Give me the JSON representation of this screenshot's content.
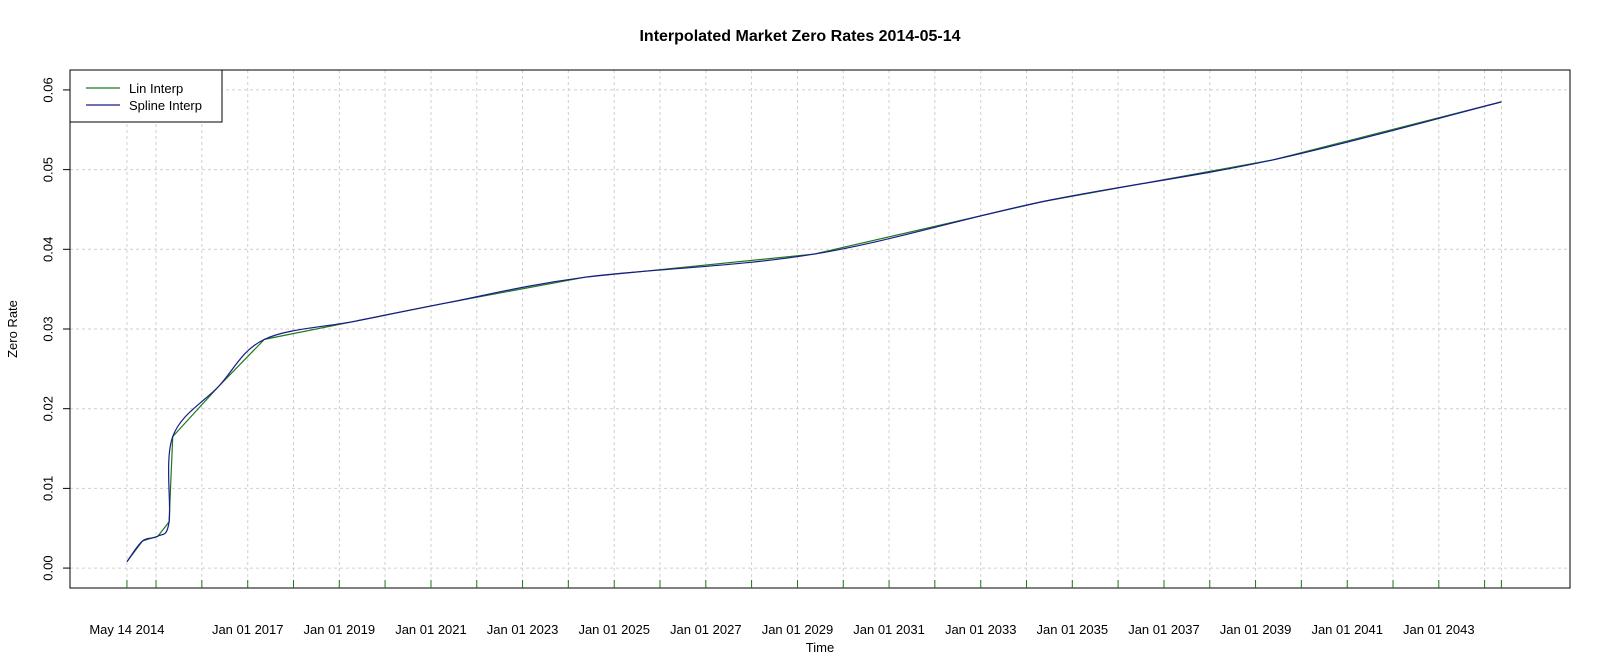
{
  "chart_data": {
    "type": "line",
    "title": "Interpolated Market Zero Rates 2014-05-14",
    "xlabel": "Time",
    "ylabel": "Zero Rate",
    "x_axis_type": "date",
    "xlim": [
      "2013-02-14",
      "2045-11-12"
    ],
    "ylim": [
      -0.0025,
      0.0625
    ],
    "y_ticks": [
      0.0,
      0.01,
      0.02,
      0.03,
      0.04,
      0.05,
      0.06
    ],
    "y_tick_labels": [
      "0.00",
      "0.01",
      "0.02",
      "0.03",
      "0.04",
      "0.05",
      "0.06"
    ],
    "x_tick_labels": [
      {
        "date": "2014-05-14",
        "label": "May 14 2014"
      },
      {
        "date": "2017-01-01",
        "label": "Jan 01 2017"
      },
      {
        "date": "2019-01-01",
        "label": "Jan 01 2019"
      },
      {
        "date": "2021-01-01",
        "label": "Jan 01 2021"
      },
      {
        "date": "2023-01-01",
        "label": "Jan 01 2023"
      },
      {
        "date": "2025-01-01",
        "label": "Jan 01 2025"
      },
      {
        "date": "2027-01-01",
        "label": "Jan 01 2027"
      },
      {
        "date": "2029-01-01",
        "label": "Jan 01 2029"
      },
      {
        "date": "2031-01-01",
        "label": "Jan 01 2031"
      },
      {
        "date": "2033-01-01",
        "label": "Jan 01 2033"
      },
      {
        "date": "2035-01-01",
        "label": "Jan 01 2035"
      },
      {
        "date": "2037-01-01",
        "label": "Jan 01 2037"
      },
      {
        "date": "2039-01-01",
        "label": "Jan 01 2039"
      },
      {
        "date": "2041-01-01",
        "label": "Jan 01 2041"
      },
      {
        "date": "2043-01-01",
        "label": "Jan 01 2043"
      }
    ],
    "x_grid_dates": [
      "2014-05-14",
      "2015-01-01",
      "2016-01-01",
      "2017-01-01",
      "2018-01-01",
      "2019-01-01",
      "2020-01-01",
      "2021-01-01",
      "2022-01-01",
      "2023-01-01",
      "2024-01-01",
      "2025-01-01",
      "2026-01-01",
      "2027-01-01",
      "2028-01-01",
      "2029-01-01",
      "2030-01-01",
      "2031-01-01",
      "2032-01-01",
      "2033-01-01",
      "2034-01-01",
      "2035-01-01",
      "2036-01-01",
      "2037-01-01",
      "2038-01-01",
      "2039-01-01",
      "2040-01-01",
      "2041-01-01",
      "2042-01-01",
      "2043-01-01",
      "2044-01-01",
      "2044-05-14"
    ],
    "grid": true,
    "legend_position": "top-left",
    "series": [
      {
        "name": "Lin Interp",
        "color": "#1a7a1a",
        "interpolation": "linear",
        "points": [
          [
            "2014-05-14",
            0.0008
          ],
          [
            "2014-09-15",
            0.0034
          ],
          [
            "2015-01-15",
            0.004
          ],
          [
            "2015-04-15",
            0.0058
          ],
          [
            "2015-05-14",
            0.0165
          ],
          [
            "2016-05-14",
            0.0228
          ],
          [
            "2017-05-14",
            0.0287
          ],
          [
            "2019-05-14",
            0.031
          ],
          [
            "2021-05-14",
            0.0333
          ],
          [
            "2024-05-14",
            0.0365
          ],
          [
            "2029-05-14",
            0.0394
          ],
          [
            "2034-05-14",
            0.046
          ],
          [
            "2039-05-14",
            0.0512
          ],
          [
            "2044-05-14",
            0.0585
          ]
        ]
      },
      {
        "name": "Spline Interp",
        "color": "#1a1a8c",
        "interpolation": "spline",
        "points": [
          [
            "2014-05-14",
            0.0008
          ],
          [
            "2014-09-15",
            0.0034
          ],
          [
            "2015-01-15",
            0.004
          ],
          [
            "2015-04-15",
            0.0058
          ],
          [
            "2015-05-14",
            0.0165
          ],
          [
            "2016-05-14",
            0.0228
          ],
          [
            "2017-05-14",
            0.0287
          ],
          [
            "2019-05-14",
            0.031
          ],
          [
            "2021-05-14",
            0.0333
          ],
          [
            "2024-05-14",
            0.0365
          ],
          [
            "2029-05-14",
            0.0394
          ],
          [
            "2034-05-14",
            0.046
          ],
          [
            "2039-05-14",
            0.0512
          ],
          [
            "2044-05-14",
            0.0585
          ]
        ]
      }
    ]
  }
}
